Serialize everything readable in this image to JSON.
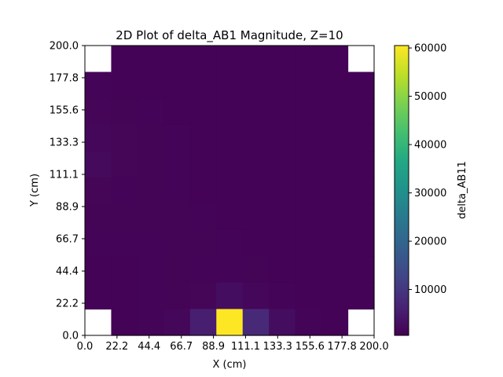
{
  "chart_data": {
    "type": "heatmap",
    "title": "2D Plot of delta_AB1 Magnitude, Z=10",
    "xlabel": "X (cm)",
    "ylabel": "Y (cm)",
    "colorbar_label": "delta_AB11",
    "colormap": "viridis",
    "xlim": [
      0,
      200
    ],
    "ylim": [
      0,
      200
    ],
    "x_ticks": [
      "0.0",
      "22.2",
      "44.4",
      "66.7",
      "88.9",
      "111.1",
      "133.3",
      "155.6",
      "177.8",
      "200.0"
    ],
    "y_ticks": [
      "0.0",
      "22.2",
      "44.4",
      "66.7",
      "88.9",
      "111.1",
      "133.3",
      "155.6",
      "177.8",
      "200.0"
    ],
    "color_range": [
      500,
      60500
    ],
    "colorbar_ticks": [
      "10000",
      "20000",
      "30000",
      "40000",
      "50000",
      "60000"
    ],
    "grid": false,
    "rows_top_to_bottom": [
      [
        null,
        900,
        900,
        900,
        900,
        900,
        900,
        900,
        900,
        900,
        null
      ],
      [
        1200,
        900,
        900,
        900,
        900,
        900,
        900,
        900,
        900,
        900,
        900
      ],
      [
        1300,
        1100,
        1000,
        900,
        900,
        900,
        900,
        900,
        900,
        900,
        900
      ],
      [
        1500,
        1300,
        1100,
        1000,
        900,
        900,
        900,
        900,
        900,
        900,
        900
      ],
      [
        2000,
        1300,
        1100,
        1000,
        900,
        900,
        900,
        900,
        900,
        900,
        900
      ],
      [
        1300,
        1200,
        1100,
        1000,
        900,
        900,
        900,
        900,
        900,
        900,
        900
      ],
      [
        1100,
        1100,
        1100,
        1100,
        1000,
        900,
        900,
        900,
        900,
        900,
        900
      ],
      [
        1000,
        1000,
        1000,
        1100,
        1100,
        1000,
        900,
        900,
        900,
        900,
        900
      ],
      [
        900,
        900,
        1000,
        1100,
        1200,
        1200,
        1100,
        900,
        900,
        900,
        900
      ],
      [
        900,
        900,
        1000,
        1100,
        1300,
        2500,
        1600,
        1000,
        900,
        900,
        900
      ],
      [
        null,
        900,
        1000,
        1500,
        5500,
        60500,
        7500,
        2500,
        1000,
        900,
        null
      ]
    ]
  }
}
